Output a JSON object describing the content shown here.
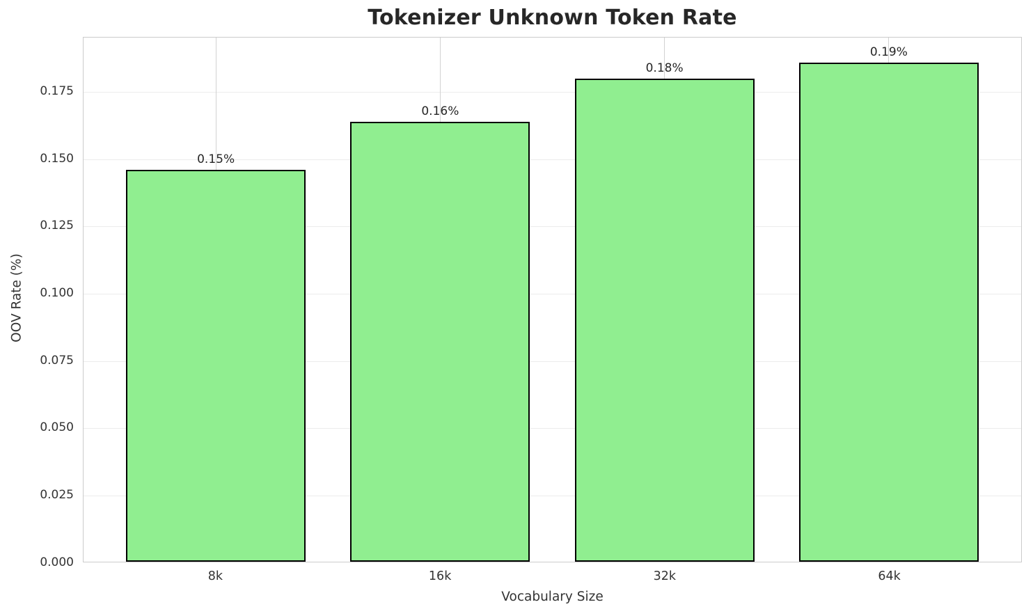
{
  "chart_data": {
    "type": "bar",
    "title": "Tokenizer Unknown Token Rate",
    "xlabel": "Vocabulary Size",
    "ylabel": "OOV Rate (%)",
    "categories": [
      "8k",
      "16k",
      "32k",
      "64k"
    ],
    "values": [
      0.146,
      0.164,
      0.18,
      0.186
    ],
    "bar_labels": [
      "0.15%",
      "0.16%",
      "0.18%",
      "0.19%"
    ],
    "ylim": [
      0,
      0.1953
    ],
    "yticks": [
      "0.000",
      "0.025",
      "0.050",
      "0.075",
      "0.100",
      "0.125",
      "0.150",
      "0.175"
    ],
    "grid": true,
    "legend_position": "none",
    "colors": {
      "bar_fill": "#90EE90",
      "bar_edge": "#000000",
      "grid_horizontal": "#ececec",
      "grid_vertical": "#d2d2d2",
      "spine": "#cbcbcb",
      "text": "#333333",
      "title_text": "#272727"
    }
  }
}
